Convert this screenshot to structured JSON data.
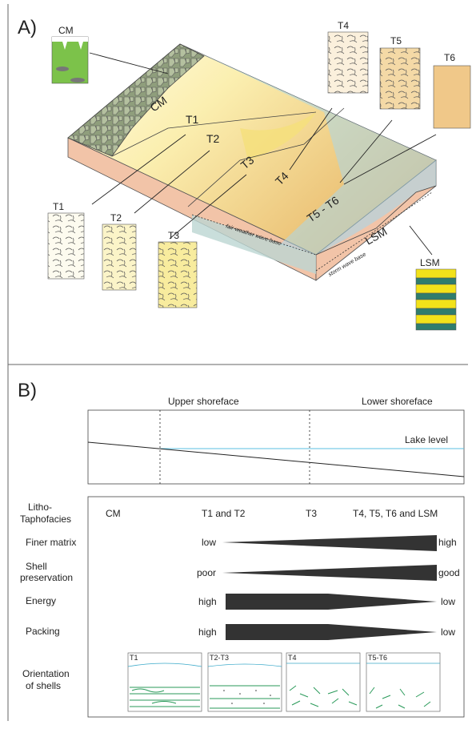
{
  "panel_a": {
    "label": "A)",
    "insets": {
      "cm": "CM",
      "t1": "T1",
      "t2": "T2",
      "t3": "T3",
      "t4": "T4",
      "t5": "T5",
      "t6": "T6",
      "lsm": "LSM"
    },
    "block": {
      "cm": "CM",
      "t1": "T1",
      "t2": "T2",
      "t3": "T3",
      "t4": "T4",
      "t5_t6": "T5 - T6",
      "lsm": "LSM",
      "fair_weather": "fair-weather wave base",
      "storm": "storm wave base"
    }
  },
  "panel_b": {
    "label": "B)",
    "zones": [
      "Upper shoreface",
      "Lower shoreface"
    ],
    "lake_level": "Lake level",
    "facies_header": [
      "Litho-",
      "Taphofacies"
    ],
    "facies": [
      "CM",
      "T1 and T2",
      "T3",
      "T4, T5, T6 and LSM"
    ],
    "rows": [
      {
        "name": [
          "Finer matrix"
        ],
        "start": "low",
        "end": "high"
      },
      {
        "name": [
          "Shell",
          "preservation"
        ],
        "start": "poor",
        "end": "good"
      },
      {
        "name": [
          "Energy"
        ],
        "start": "high",
        "end": "low"
      },
      {
        "name": [
          "Packing"
        ],
        "start": "high",
        "end": "low"
      }
    ],
    "orientation": {
      "name": [
        "Orientation",
        "of shells"
      ],
      "panels": [
        "T1",
        "T2-T3",
        "T4",
        "T5-T6"
      ]
    }
  }
}
